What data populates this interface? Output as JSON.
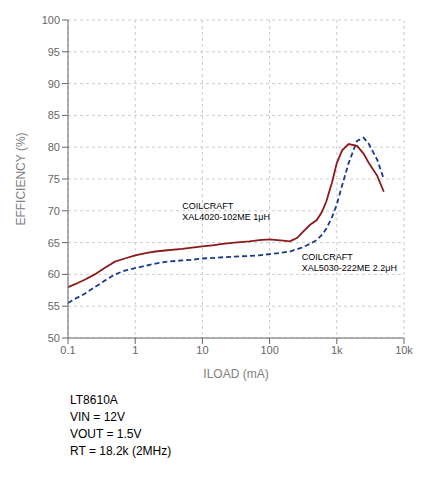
{
  "chart_data": {
    "type": "line",
    "ylabel": "EFFICIENCY (%)",
    "xlabel": "ILOAD (mA)",
    "log": "x",
    "grid": true,
    "xlim": [
      0.1,
      10000
    ],
    "ylim": [
      50,
      100
    ],
    "xticks": [
      0.1,
      1,
      10,
      100,
      {
        "value": 1000,
        "label": "1k"
      },
      {
        "value": 10000,
        "label": "10k"
      }
    ],
    "yticks": [
      50,
      55,
      60,
      65,
      70,
      75,
      80,
      85,
      90,
      95,
      100
    ],
    "series": [
      {
        "color": "#1A3A8B",
        "line_style": "dashed",
        "x": [
          0.1,
          0.13,
          0.18,
          0.25,
          0.35,
          0.5,
          0.7,
          1.0,
          1.5,
          2.0,
          3.0,
          5.0,
          7.0,
          10.0,
          15.0,
          20.0,
          30.0,
          50.0,
          70.0,
          100.0,
          150.0,
          200.0,
          300.0,
          400.0,
          500.0,
          600.0,
          700.0,
          850.0,
          1000.0,
          1200.0,
          1500.0,
          2000.0,
          2500.0,
          3000.0,
          4000.0,
          5000.0
        ],
        "values": [
          55.5,
          56.2,
          57.0,
          58.0,
          59.0,
          60.0,
          60.6,
          61.0,
          61.4,
          61.7,
          62.0,
          62.2,
          62.3,
          62.5,
          62.6,
          62.7,
          62.8,
          62.9,
          63.0,
          63.2,
          63.4,
          63.6,
          64.2,
          64.8,
          65.4,
          66.2,
          67.2,
          69.0,
          71.0,
          74.0,
          77.5,
          81.0,
          81.5,
          80.5,
          78.0,
          75.0
        ]
      },
      {
        "color": "#8B1A1A",
        "line_style": "solid",
        "x": [
          0.1,
          0.13,
          0.18,
          0.25,
          0.35,
          0.5,
          0.7,
          1.0,
          1.5,
          2.0,
          3.0,
          5.0,
          7.0,
          10.0,
          15.0,
          20.0,
          30.0,
          50.0,
          70.0,
          100.0,
          130.0,
          160.0,
          200.0,
          230.0,
          260.0,
          300.0,
          350.0,
          400.0,
          500.0,
          600.0,
          700.0,
          850.0,
          1000.0,
          1200.0,
          1500.0,
          2000.0,
          2500.0,
          3000.0,
          4000.0,
          5000.0
        ],
        "values": [
          58.0,
          58.5,
          59.2,
          60.0,
          61.0,
          62.0,
          62.5,
          63.0,
          63.4,
          63.6,
          63.8,
          64.0,
          64.2,
          64.4,
          64.6,
          64.8,
          65.0,
          65.2,
          65.4,
          65.5,
          65.4,
          65.3,
          65.2,
          65.5,
          65.8,
          66.5,
          67.2,
          67.8,
          68.5,
          69.8,
          71.5,
          74.5,
          77.5,
          79.5,
          80.5,
          80.2,
          79.0,
          77.5,
          75.5,
          73.0
        ]
      }
    ],
    "annotations": [
      {
        "text": "COILCRAFT\nXAL4020-102ME 1μH",
        "x": 5.0,
        "y": 71.5
      },
      {
        "text": "COILCRAFT\nXAL5030-222ME 2.2μH",
        "x": 300.0,
        "y": 63.5
      }
    ],
    "caption": [
      "LT8610A",
      "VIN = 12V",
      "VOUT = 1.5V",
      "RT = 18.2k (2MHz)"
    ]
  }
}
